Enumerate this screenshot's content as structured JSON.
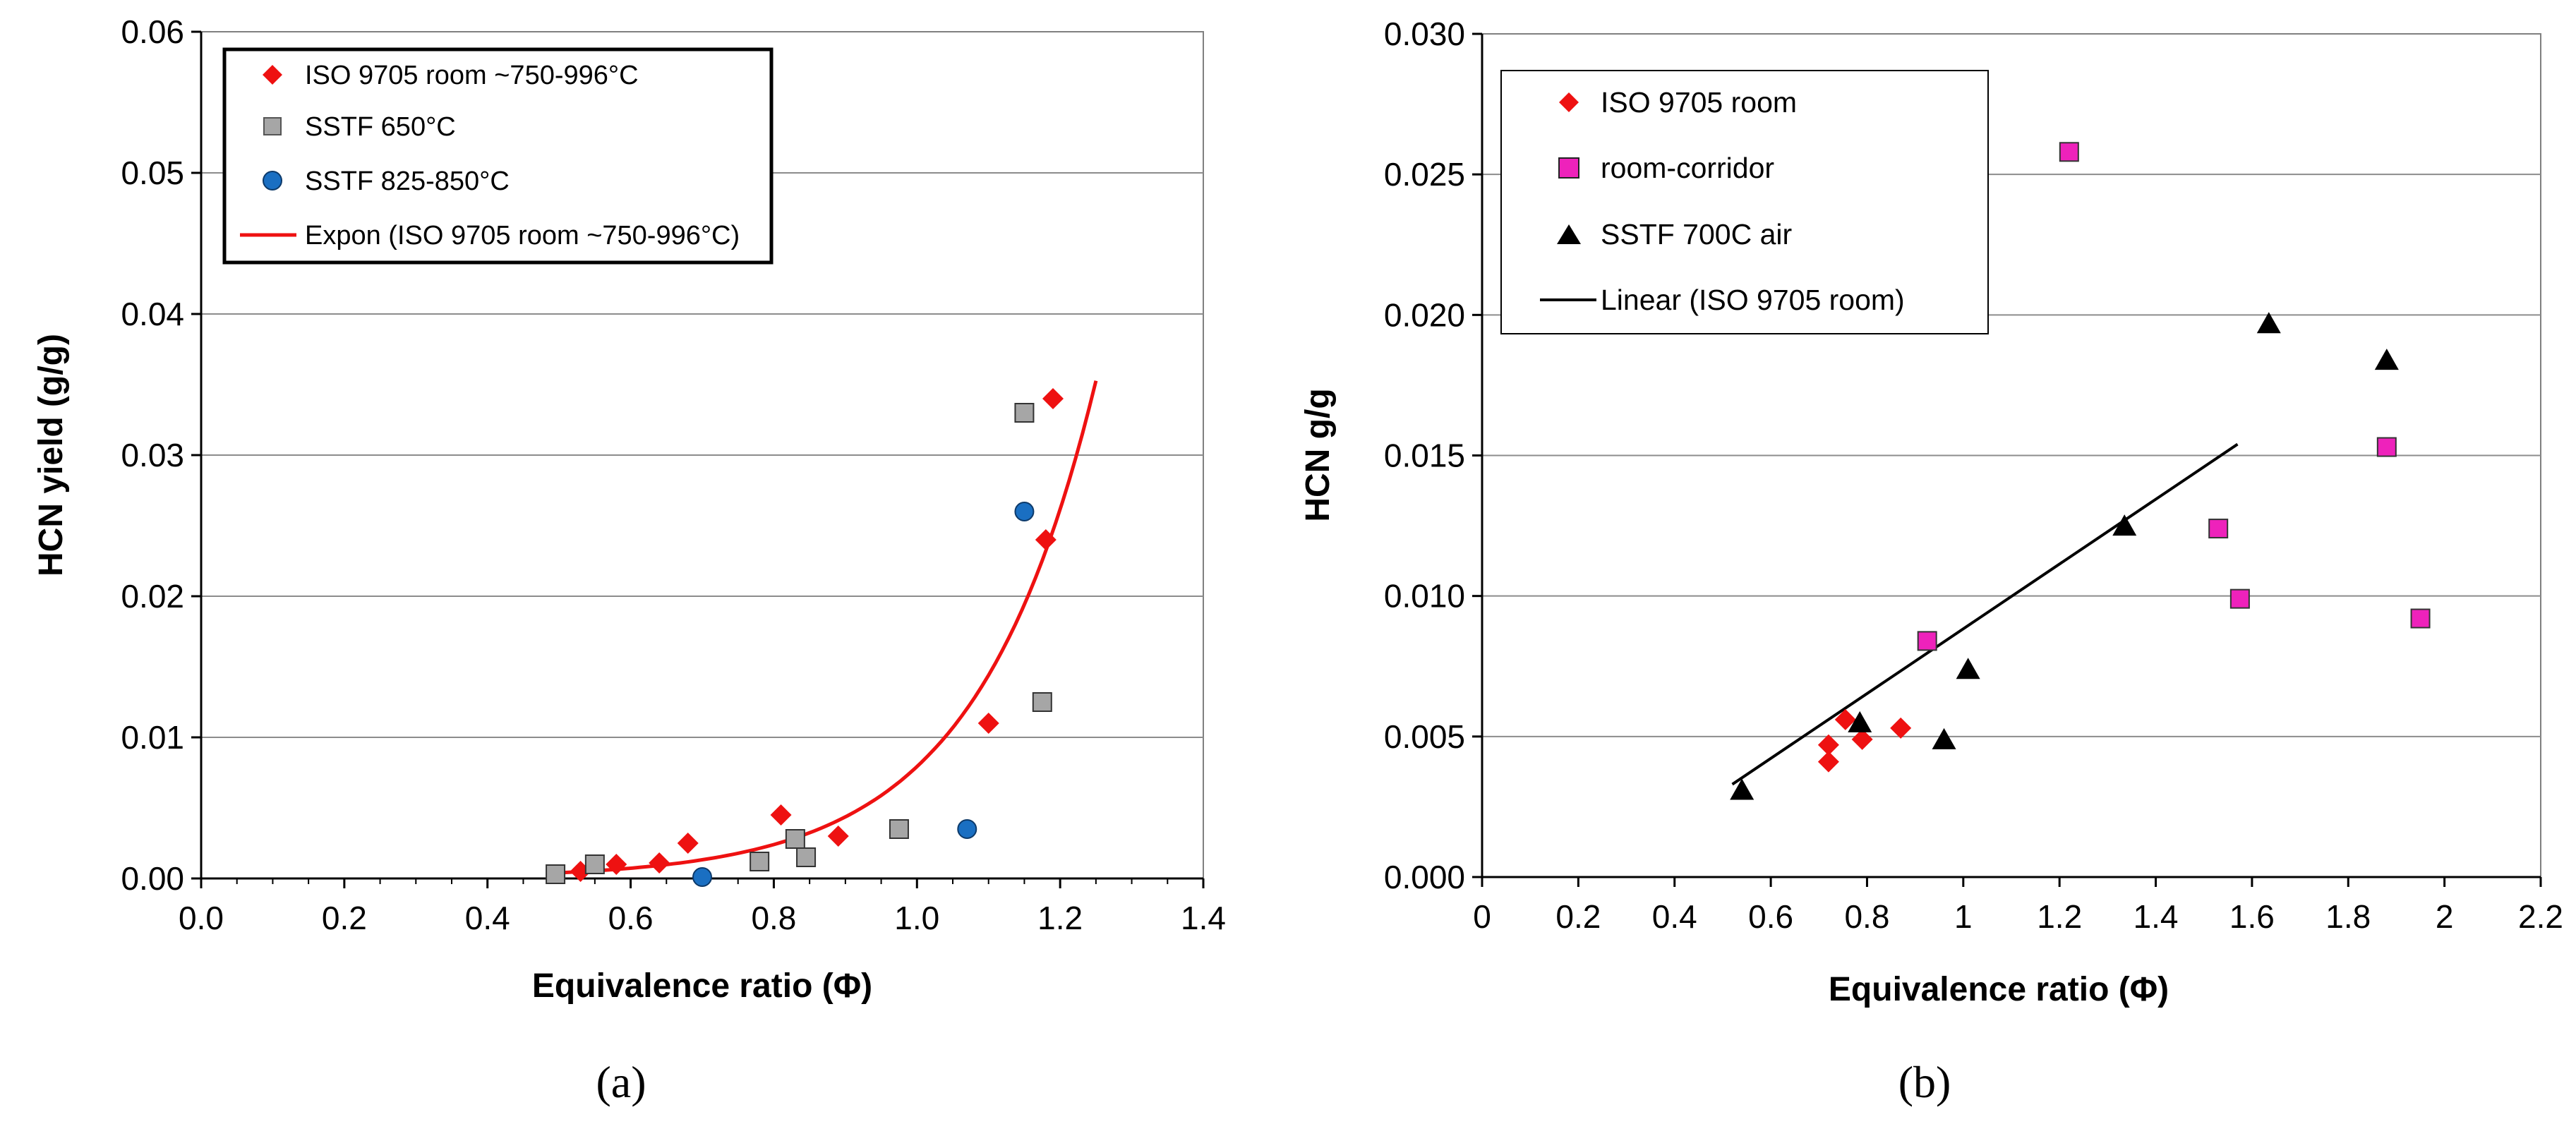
{
  "chart_data": [
    {
      "type": "scatter",
      "panel_label": "(a)",
      "xlabel": "Equivalence ratio (Φ)",
      "ylabel": "HCN yield (g/g)",
      "xlim": [
        0,
        1.4
      ],
      "ylim": [
        0,
        0.06
      ],
      "xticks": [
        "0.0",
        "0.2",
        "0.4",
        "0.6",
        "0.8",
        "1.0",
        "1.2",
        "1.4"
      ],
      "yticks": [
        "0.00",
        "0.01",
        "0.02",
        "0.03",
        "0.04",
        "0.05",
        "0.06"
      ],
      "grid": "horizontal",
      "legend_position": "top-left",
      "series": [
        {
          "name": "ISO 9705 room ~750-996°C",
          "marker": "diamond",
          "color": "#ee1111",
          "x": [
            0.53,
            0.58,
            0.64,
            0.68,
            0.81,
            0.89,
            1.1,
            1.18,
            1.19
          ],
          "y": [
            0.0005,
            0.001,
            0.0011,
            0.0025,
            0.0045,
            0.003,
            0.011,
            0.024,
            0.034
          ]
        },
        {
          "name": "SSTF 650°C",
          "marker": "square",
          "color": "#a6a6a6",
          "x": [
            0.495,
            0.55,
            0.78,
            0.83,
            0.845,
            0.975,
            1.15,
            1.175
          ],
          "y": [
            0.0003,
            0.001,
            0.0012,
            0.0028,
            0.0015,
            0.0035,
            0.033,
            0.0125
          ]
        },
        {
          "name": "SSTF 825-850°C",
          "marker": "circle",
          "color": "#1a6fc2",
          "x": [
            0.7,
            1.07,
            1.15
          ],
          "y": [
            0.0001,
            0.0035,
            0.026
          ]
        },
        {
          "name": "Expon (ISO 9705 room ~750-996°C)",
          "type": "exponential-fit",
          "color": "#ee1111",
          "a": 2.025e-05,
          "b": 5.97,
          "x_range": [
            0.5,
            1.25
          ]
        }
      ]
    },
    {
      "type": "scatter",
      "panel_label": "(b)",
      "xlabel": "Equivalence ratio (Φ)",
      "ylabel": "HCN g/g",
      "xlim": [
        0,
        2.2
      ],
      "ylim": [
        0,
        0.03
      ],
      "xticks": [
        "0",
        "0.2",
        "0.4",
        "0.6",
        "0.8",
        "1",
        "1.2",
        "1.4",
        "1.6",
        "1.8",
        "2",
        "2.2"
      ],
      "yticks": [
        "0.000",
        "0.005",
        "0.010",
        "0.015",
        "0.020",
        "0.025",
        "0.030"
      ],
      "grid": "horizontal",
      "legend_position": "top-left",
      "series": [
        {
          "name": "ISO 9705 room",
          "marker": "diamond",
          "color": "#ee1111",
          "x": [
            0.72,
            0.72,
            0.755,
            0.79,
            0.87
          ],
          "y": [
            0.0041,
            0.0047,
            0.0056,
            0.0049,
            0.0053
          ]
        },
        {
          "name": "room-corridor",
          "marker": "square",
          "color": "#ee22bb",
          "x": [
            0.925,
            1.22,
            1.53,
            1.575,
            1.88,
            1.95
          ],
          "y": [
            0.0084,
            0.0258,
            0.0124,
            0.0099,
            0.0153,
            0.0092
          ]
        },
        {
          "name": "SSTF 700C air",
          "marker": "triangle",
          "color": "#000000",
          "x": [
            0.54,
            0.785,
            0.96,
            1.01,
            1.335,
            1.635,
            1.88
          ],
          "y": [
            0.0031,
            0.0055,
            0.0049,
            0.0074,
            0.0125,
            0.0197,
            0.0184
          ]
        },
        {
          "name": "Linear (ISO 9705 room)",
          "type": "linear-fit",
          "color": "#000000",
          "x": [
            0.52,
            1.57
          ],
          "y": [
            0.0033,
            0.0154
          ]
        }
      ]
    }
  ]
}
